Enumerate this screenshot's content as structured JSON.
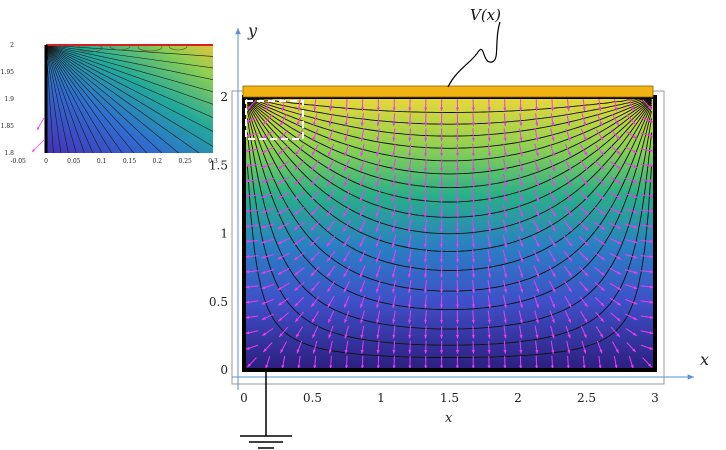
{
  "main_plot": {
    "x_axis_name": "x",
    "y_axis_name": "y",
    "x_axis_label": "x",
    "x_ticks": [
      "0",
      "0.5",
      "1",
      "1.5",
      "2",
      "2.5",
      "3"
    ],
    "y_ticks": [
      "0",
      "0.5",
      "1",
      "1.5",
      "2"
    ],
    "electrode_label": "V(x)",
    "colors": {
      "electrode": "#F2B212",
      "field_arrows": "#EE3BEE",
      "axis_arrows": "#5B8FD6",
      "color_low": "#2C1E7E",
      "color_mid": "#29AF8A",
      "color_high": "#EAD73A"
    }
  },
  "inset_plot": {
    "x_ticks": [
      "-0.05",
      "0",
      "0.05",
      "0.1",
      "0.15",
      "0.2",
      "0.25",
      "0.3"
    ],
    "y_ticks": [
      "2",
      "1.95",
      "1.9",
      "1.85",
      "1.8"
    ]
  }
}
